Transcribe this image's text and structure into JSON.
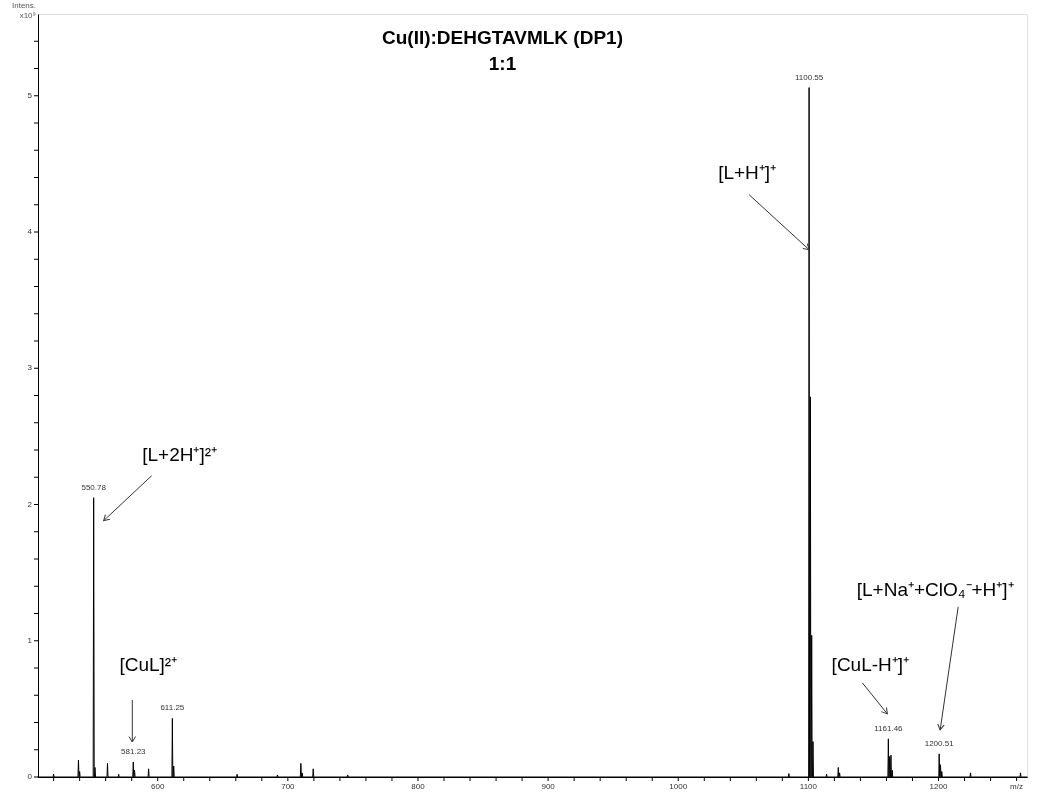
{
  "chart_data": {
    "type": "line",
    "title": "Cu(II):DEHGTAVMLK (DP1)",
    "subtitle": "1:1",
    "xlabel": "m/z",
    "ylabel": "Intens. x10⁹",
    "xlim": [
      508,
      1268
    ],
    "ylim": [
      0,
      5.6
    ],
    "xticks": [
      {
        "value": 520,
        "label": null
      },
      {
        "value": 540,
        "label": null
      },
      {
        "value": 560,
        "label": null
      },
      {
        "value": 580,
        "label": null
      },
      600,
      {
        "value": 620,
        "label": null
      },
      {
        "value": 640,
        "label": null
      },
      {
        "value": 660,
        "label": null
      },
      {
        "value": 680,
        "label": null
      },
      700,
      {
        "value": 720,
        "label": null
      },
      {
        "value": 740,
        "label": null
      },
      {
        "value": 760,
        "label": null
      },
      {
        "value": 780,
        "label": null
      },
      800,
      {
        "value": 820,
        "label": null
      },
      {
        "value": 840,
        "label": null
      },
      {
        "value": 860,
        "label": null
      },
      {
        "value": 880,
        "label": null
      },
      900,
      {
        "value": 920,
        "label": null
      },
      {
        "value": 940,
        "label": null
      },
      {
        "value": 960,
        "label": null
      },
      {
        "value": 980,
        "label": null
      },
      1000,
      {
        "value": 1020,
        "label": null
      },
      {
        "value": 1040,
        "label": null
      },
      {
        "value": 1060,
        "label": null
      },
      {
        "value": 1080,
        "label": null
      },
      1100,
      {
        "value": 1120,
        "label": null
      },
      {
        "value": 1140,
        "label": null
      },
      {
        "value": 1160,
        "label": null
      },
      {
        "value": 1180,
        "label": null
      },
      1200,
      {
        "value": 1220,
        "label": null
      },
      {
        "value": 1240,
        "label": null
      },
      {
        "value": 1260,
        "label": null
      }
    ],
    "yticks": [
      0,
      {
        "value": 0.2,
        "label": null
      },
      {
        "value": 0.4,
        "label": null
      },
      {
        "value": 0.6,
        "label": null
      },
      {
        "value": 0.8,
        "label": null
      },
      1,
      {
        "value": 1.2,
        "label": null
      },
      {
        "value": 1.4,
        "label": null
      },
      {
        "value": 1.6,
        "label": null
      },
      {
        "value": 1.8,
        "label": null
      },
      2,
      {
        "value": 2.2,
        "label": null
      },
      {
        "value": 2.4,
        "label": null
      },
      {
        "value": 2.6,
        "label": null
      },
      {
        "value": 2.8,
        "label": null
      },
      3,
      {
        "value": 3.2,
        "label": null
      },
      {
        "value": 3.4,
        "label": null
      },
      {
        "value": 3.6,
        "label": null
      },
      {
        "value": 3.8,
        "label": null
      },
      4,
      {
        "value": 4.2,
        "label": null
      },
      {
        "value": 4.4,
        "label": null
      },
      {
        "value": 4.6,
        "label": null
      },
      {
        "value": 4.8,
        "label": null
      },
      5,
      {
        "value": 5.2,
        "label": null
      },
      {
        "value": 5.4,
        "label": null
      }
    ],
    "grid": false,
    "marker": "none",
    "line_style": "solid",
    "series": [
      {
        "color": "#000000",
        "x": [
          508,
          519.6,
          520,
          520.4,
          538.7,
          539.1,
          539.5,
          539.6,
          540,
          540.4,
          550.4,
          550.78,
          551.2,
          551.4,
          551.8,
          552.2,
          561,
          561.4,
          561.8,
          569.6,
          570,
          570.4,
          580.8,
          581.23,
          581.6,
          581.8,
          582.2,
          582.6,
          592.6,
          593,
          593.4,
          610.9,
          611.25,
          611.6,
          611.9,
          612.3,
          612.7,
          660.6,
          661,
          661.4,
          691.6,
          692,
          692.4,
          709.6,
          710,
          710.4,
          710.6,
          711,
          711.4,
          719.1,
          719.5,
          719.9,
          745.6,
          746,
          746.4,
          1084.6,
          1085,
          1085.4,
          1100.2,
          1100.55,
          1100.9,
          1101.2,
          1101.55,
          1101.9,
          1102.2,
          1102.55,
          1102.9,
          1103.2,
          1103.55,
          1103.9,
          1113.6,
          1114,
          1114.4,
          1122.6,
          1123,
          1123.4,
          1123.6,
          1124,
          1124.4,
          1161.1,
          1161.46,
          1161.8,
          1162.1,
          1162.46,
          1162.8,
          1163.1,
          1163.46,
          1163.8,
          1164.1,
          1164.46,
          1164.8,
          1200.2,
          1200.51,
          1200.9,
          1201.2,
          1201.51,
          1201.9,
          1202.2,
          1202.51,
          1202.9,
          1224.2,
          1224.6,
          1225,
          1262.6,
          1263,
          1263.4,
          1268
        ],
        "values": [
          0,
          0,
          0.02,
          0,
          0,
          0.125,
          0,
          0,
          0.04,
          0,
          0,
          2.05,
          0,
          0,
          0.07,
          0,
          0,
          0.1,
          0,
          0,
          0.02,
          0,
          0,
          0.11,
          0,
          0,
          0.05,
          0,
          0,
          0.06,
          0,
          0,
          0.43,
          0,
          0,
          0.08,
          0,
          0,
          0.02,
          0,
          0,
          0.015,
          0,
          0,
          0.1,
          0,
          0,
          0.03,
          0,
          0,
          0.06,
          0,
          0,
          0.015,
          0,
          0,
          0.025,
          0,
          0,
          5.06,
          0,
          0,
          2.79,
          0,
          0,
          1.04,
          0,
          0,
          0.26,
          0,
          0,
          0.02,
          0,
          0,
          0.07,
          0,
          0,
          0.03,
          0,
          0,
          0.28,
          0,
          0,
          0.15,
          0,
          0,
          0.16,
          0,
          0,
          0.05,
          0,
          0,
          0.17,
          0,
          0,
          0.09,
          0,
          0,
          0.04,
          0,
          0,
          0.03,
          0,
          0,
          0.03,
          0,
          0
        ]
      }
    ],
    "annotations": [
      {
        "text": "550.78",
        "x": 550.78,
        "y": 2.05
      },
      {
        "text": "581.23",
        "x": 581.23,
        "y": 0.11
      },
      {
        "text": "611.25",
        "x": 611.25,
        "y": 0.43
      },
      {
        "text": "1100.55",
        "x": 1100.55,
        "y": 5.06
      },
      {
        "text": "1161.46",
        "x": 1161.46,
        "y": 0.28
      },
      {
        "text": "1200.51",
        "x": 1200.51,
        "y": 0.17
      },
      "[L+2H⁺]²⁺",
      "[CuL]²⁺",
      {
        "text": "[L+H⁺]⁺",
        "x": 1100.55,
        "y": 3.87
      },
      "[CuL-H⁺]⁺",
      "[L+Na⁺+ClO₄⁻+H⁺]⁺"
    ]
  }
}
